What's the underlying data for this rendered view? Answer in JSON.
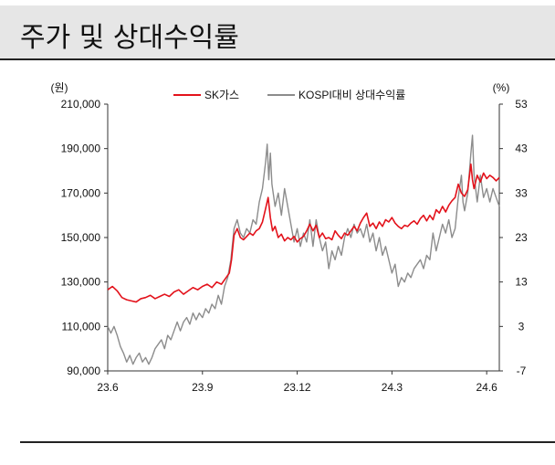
{
  "title": "주가 및 상대수익률",
  "chart_data": {
    "type": "line",
    "title": "주가 및 상대수익률",
    "left_axis": {
      "label": "(원)",
      "ticks": [
        "210,000",
        "190,000",
        "170,000",
        "150,000",
        "130,000",
        "110,000",
        "90,000"
      ],
      "tick_values": [
        210000,
        190000,
        170000,
        150000,
        130000,
        110000,
        90000
      ],
      "ylim": [
        90000,
        210000
      ]
    },
    "right_axis": {
      "label": "(%)",
      "ticks": [
        "53",
        "43",
        "33",
        "23",
        "13",
        "3",
        "-7"
      ],
      "tick_values": [
        53,
        43,
        33,
        23,
        13,
        3,
        -7
      ],
      "ylim": [
        -7,
        53
      ]
    },
    "x_ticks": [
      "23.6",
      "23.9",
      "23.12",
      "24.3",
      "24.6"
    ],
    "xlim": [
      0,
      12.4
    ],
    "legend_position": "top",
    "series": [
      {
        "name": "SK가스",
        "axis": "left",
        "color": "#e3121b",
        "points": [
          [
            0,
            126500
          ],
          [
            0.15,
            128000
          ],
          [
            0.3,
            126000
          ],
          [
            0.45,
            123000
          ],
          [
            0.6,
            122000
          ],
          [
            0.75,
            121500
          ],
          [
            0.9,
            121000
          ],
          [
            1.05,
            122500
          ],
          [
            1.2,
            123000
          ],
          [
            1.35,
            124000
          ],
          [
            1.5,
            122500
          ],
          [
            1.65,
            123500
          ],
          [
            1.8,
            124500
          ],
          [
            1.95,
            123500
          ],
          [
            2.1,
            125500
          ],
          [
            2.25,
            126500
          ],
          [
            2.4,
            124500
          ],
          [
            2.55,
            126000
          ],
          [
            2.7,
            127500
          ],
          [
            2.85,
            126500
          ],
          [
            3.0,
            128000
          ],
          [
            3.15,
            129000
          ],
          [
            3.3,
            127500
          ],
          [
            3.45,
            130000
          ],
          [
            3.6,
            129000
          ],
          [
            3.75,
            132000
          ],
          [
            3.85,
            134000
          ],
          [
            3.92,
            140000
          ],
          [
            4.0,
            151000
          ],
          [
            4.1,
            154000
          ],
          [
            4.2,
            150000
          ],
          [
            4.3,
            149000
          ],
          [
            4.4,
            150500
          ],
          [
            4.5,
            152000
          ],
          [
            4.6,
            151000
          ],
          [
            4.7,
            153000
          ],
          [
            4.8,
            154000
          ],
          [
            4.9,
            157000
          ],
          [
            5.0,
            163000
          ],
          [
            5.08,
            168000
          ],
          [
            5.15,
            159000
          ],
          [
            5.22,
            153000
          ],
          [
            5.3,
            155000
          ],
          [
            5.4,
            150000
          ],
          [
            5.5,
            151500
          ],
          [
            5.6,
            148500
          ],
          [
            5.7,
            150000
          ],
          [
            5.8,
            149000
          ],
          [
            5.9,
            150500
          ],
          [
            6.0,
            148000
          ],
          [
            6.1,
            149500
          ],
          [
            6.2,
            150500
          ],
          [
            6.3,
            153000
          ],
          [
            6.4,
            156000
          ],
          [
            6.5,
            153000
          ],
          [
            6.6,
            155500
          ],
          [
            6.7,
            150000
          ],
          [
            6.8,
            152000
          ],
          [
            6.9,
            149500
          ],
          [
            7.0,
            150000
          ],
          [
            7.1,
            149000
          ],
          [
            7.2,
            153000
          ],
          [
            7.3,
            151000
          ],
          [
            7.4,
            149500
          ],
          [
            7.5,
            152000
          ],
          [
            7.6,
            151000
          ],
          [
            7.7,
            153000
          ],
          [
            7.8,
            155000
          ],
          [
            7.9,
            153000
          ],
          [
            8.0,
            156500
          ],
          [
            8.1,
            159000
          ],
          [
            8.2,
            161000
          ],
          [
            8.3,
            155000
          ],
          [
            8.4,
            156500
          ],
          [
            8.5,
            154000
          ],
          [
            8.6,
            157000
          ],
          [
            8.7,
            155000
          ],
          [
            8.8,
            158000
          ],
          [
            8.9,
            157000
          ],
          [
            9.0,
            159000
          ],
          [
            9.1,
            156500
          ],
          [
            9.2,
            155000
          ],
          [
            9.3,
            154000
          ],
          [
            9.4,
            155500
          ],
          [
            9.5,
            155000
          ],
          [
            9.6,
            156500
          ],
          [
            9.7,
            157500
          ],
          [
            9.8,
            156000
          ],
          [
            9.9,
            158500
          ],
          [
            10.0,
            160000
          ],
          [
            10.1,
            157500
          ],
          [
            10.2,
            160000
          ],
          [
            10.3,
            158000
          ],
          [
            10.4,
            162500
          ],
          [
            10.5,
            161000
          ],
          [
            10.6,
            164000
          ],
          [
            10.7,
            161500
          ],
          [
            10.8,
            164500
          ],
          [
            10.9,
            166500
          ],
          [
            11.0,
            168000
          ],
          [
            11.1,
            174000
          ],
          [
            11.2,
            170000
          ],
          [
            11.3,
            168500
          ],
          [
            11.4,
            171500
          ],
          [
            11.5,
            183000
          ],
          [
            11.55,
            176000
          ],
          [
            11.6,
            172000
          ],
          [
            11.7,
            178000
          ],
          [
            11.8,
            175000
          ],
          [
            11.9,
            179000
          ],
          [
            12.0,
            176500
          ],
          [
            12.1,
            178000
          ],
          [
            12.2,
            177000
          ],
          [
            12.3,
            175500
          ],
          [
            12.4,
            177000
          ]
        ]
      },
      {
        "name": "KOSPI대비 상대수익률",
        "axis": "right",
        "color": "#8c8c8c",
        "points": [
          [
            0,
            3
          ],
          [
            0.1,
            1.5
          ],
          [
            0.2,
            3
          ],
          [
            0.3,
            1
          ],
          [
            0.4,
            -1.5
          ],
          [
            0.5,
            -3
          ],
          [
            0.6,
            -5
          ],
          [
            0.7,
            -3.5
          ],
          [
            0.8,
            -5.5
          ],
          [
            0.9,
            -4
          ],
          [
            1.0,
            -3
          ],
          [
            1.1,
            -5
          ],
          [
            1.2,
            -4
          ],
          [
            1.3,
            -5.5
          ],
          [
            1.4,
            -4
          ],
          [
            1.5,
            -2
          ],
          [
            1.6,
            -1
          ],
          [
            1.7,
            0
          ],
          [
            1.8,
            -2
          ],
          [
            1.9,
            1
          ],
          [
            2.0,
            0
          ],
          [
            2.1,
            2
          ],
          [
            2.2,
            4
          ],
          [
            2.3,
            2
          ],
          [
            2.4,
            4
          ],
          [
            2.5,
            5
          ],
          [
            2.6,
            3.5
          ],
          [
            2.7,
            6
          ],
          [
            2.8,
            4.5
          ],
          [
            2.9,
            6
          ],
          [
            3.0,
            5
          ],
          [
            3.1,
            7
          ],
          [
            3.2,
            6
          ],
          [
            3.3,
            8
          ],
          [
            3.4,
            7
          ],
          [
            3.5,
            10
          ],
          [
            3.6,
            8
          ],
          [
            3.7,
            12
          ],
          [
            3.8,
            14
          ],
          [
            3.9,
            18
          ],
          [
            4.0,
            25
          ],
          [
            4.1,
            27
          ],
          [
            4.2,
            24
          ],
          [
            4.3,
            23
          ],
          [
            4.4,
            25
          ],
          [
            4.5,
            24
          ],
          [
            4.6,
            27
          ],
          [
            4.7,
            26
          ],
          [
            4.8,
            31
          ],
          [
            4.9,
            34
          ],
          [
            5.0,
            40
          ],
          [
            5.05,
            44
          ],
          [
            5.1,
            36
          ],
          [
            5.15,
            42
          ],
          [
            5.2,
            35
          ],
          [
            5.3,
            30
          ],
          [
            5.4,
            33
          ],
          [
            5.5,
            28
          ],
          [
            5.6,
            34
          ],
          [
            5.7,
            30
          ],
          [
            5.8,
            26
          ],
          [
            5.9,
            22
          ],
          [
            6.0,
            25
          ],
          [
            6.1,
            21
          ],
          [
            6.2,
            24
          ],
          [
            6.3,
            22
          ],
          [
            6.4,
            27
          ],
          [
            6.5,
            21
          ],
          [
            6.6,
            27
          ],
          [
            6.7,
            23
          ],
          [
            6.8,
            20
          ],
          [
            6.9,
            22
          ],
          [
            7.0,
            16
          ],
          [
            7.1,
            20
          ],
          [
            7.2,
            18
          ],
          [
            7.3,
            21
          ],
          [
            7.4,
            19
          ],
          [
            7.5,
            23
          ],
          [
            7.6,
            25
          ],
          [
            7.7,
            23
          ],
          [
            7.8,
            26
          ],
          [
            7.9,
            24
          ],
          [
            8.0,
            25
          ],
          [
            8.1,
            23
          ],
          [
            8.2,
            26
          ],
          [
            8.3,
            22
          ],
          [
            8.4,
            24
          ],
          [
            8.5,
            20
          ],
          [
            8.6,
            23
          ],
          [
            8.7,
            19
          ],
          [
            8.8,
            21
          ],
          [
            8.9,
            18
          ],
          [
            9.0,
            15
          ],
          [
            9.1,
            17
          ],
          [
            9.2,
            12
          ],
          [
            9.3,
            14
          ],
          [
            9.4,
            13
          ],
          [
            9.5,
            15
          ],
          [
            9.6,
            14
          ],
          [
            9.7,
            16
          ],
          [
            9.8,
            17
          ],
          [
            9.9,
            18
          ],
          [
            10.0,
            16
          ],
          [
            10.1,
            19
          ],
          [
            10.2,
            18
          ],
          [
            10.3,
            24
          ],
          [
            10.4,
            20
          ],
          [
            10.5,
            23
          ],
          [
            10.6,
            26
          ],
          [
            10.7,
            24
          ],
          [
            10.8,
            27
          ],
          [
            10.9,
            23
          ],
          [
            11.0,
            25
          ],
          [
            11.1,
            32
          ],
          [
            11.2,
            37
          ],
          [
            11.25,
            31
          ],
          [
            11.3,
            29
          ],
          [
            11.4,
            33
          ],
          [
            11.5,
            42
          ],
          [
            11.55,
            46
          ],
          [
            11.6,
            37
          ],
          [
            11.7,
            31
          ],
          [
            11.8,
            37
          ],
          [
            11.9,
            32
          ],
          [
            12.0,
            34
          ],
          [
            12.1,
            31
          ],
          [
            12.2,
            34
          ],
          [
            12.3,
            32
          ],
          [
            12.4,
            30
          ]
        ]
      }
    ]
  }
}
